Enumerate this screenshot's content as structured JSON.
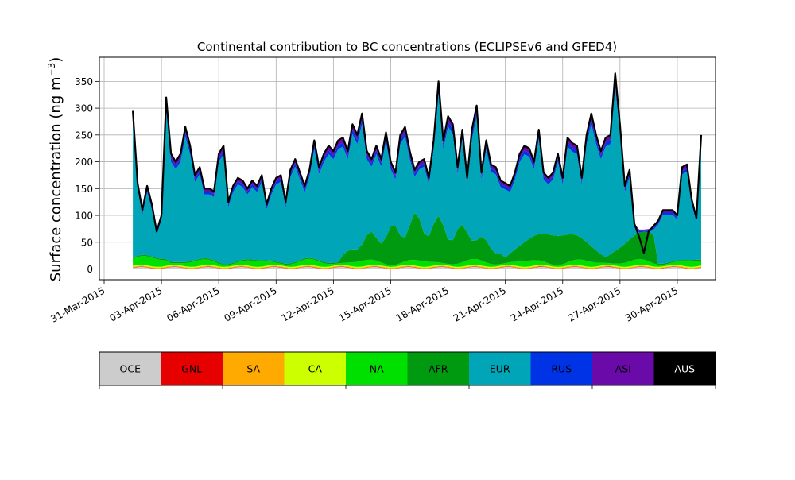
{
  "chart_data": {
    "type": "area",
    "stacked": true,
    "title": "Continental contribution to BC concentrations (ECLIPSEv6 and GFED4)",
    "ylabel_main": "Surface concentration (ng m",
    "ylabel_sup": "−3",
    "ylabel_close": ")",
    "xlabel": "",
    "ylim": [
      -20,
      395
    ],
    "yticks": [
      0,
      50,
      100,
      150,
      200,
      250,
      300,
      350
    ],
    "xlim": [
      "2015-03-30T18:00",
      "2015-05-02T00:00"
    ],
    "xticks": [
      "31-Mar-2015",
      "03-Apr-2015",
      "06-Apr-2015",
      "09-Apr-2015",
      "12-Apr-2015",
      "15-Apr-2015",
      "18-Apr-2015",
      "21-Apr-2015",
      "24-Apr-2015",
      "27-Apr-2015",
      "30-Apr-2015"
    ],
    "grid": true,
    "legend_placement": "colorbar-below",
    "series_order": [
      "OCE",
      "GNL",
      "SA",
      "CA",
      "NA",
      "AFR",
      "EUR",
      "RUS",
      "ASI",
      "AUS"
    ],
    "series_colors": {
      "OCE": "#cccccc",
      "GNL": "#e60000",
      "SA": "#ffaa00",
      "CA": "#ccff00",
      "NA": "#00e000",
      "AFR": "#009a10",
      "EUR": "#00a5b8",
      "RUS": "#0033e6",
      "ASI": "#6a0aa8",
      "AUS": "#000000"
    },
    "total_series": {
      "x": [
        "2015-04-01T12:00",
        "2015-04-01T18:00",
        "2015-04-02T00:00",
        "2015-04-02T06:00",
        "2015-04-02T12:00",
        "2015-04-02T18:00",
        "2015-04-03T00:00",
        "2015-04-03T06:00",
        "2015-04-03T12:00",
        "2015-04-03T18:00",
        "2015-04-04T00:00",
        "2015-04-04T06:00",
        "2015-04-04T12:00",
        "2015-04-04T18:00",
        "2015-04-05T00:00",
        "2015-04-05T06:00",
        "2015-04-05T12:00",
        "2015-04-05T18:00",
        "2015-04-06T00:00",
        "2015-04-06T06:00",
        "2015-04-06T12:00",
        "2015-04-06T18:00",
        "2015-04-07T00:00",
        "2015-04-07T06:00",
        "2015-04-07T12:00",
        "2015-04-07T18:00",
        "2015-04-08T00:00",
        "2015-04-08T06:00",
        "2015-04-08T12:00",
        "2015-04-08T18:00",
        "2015-04-09T00:00",
        "2015-04-09T06:00",
        "2015-04-09T12:00",
        "2015-04-09T18:00",
        "2015-04-10T00:00",
        "2015-04-10T06:00",
        "2015-04-10T12:00",
        "2015-04-10T18:00",
        "2015-04-11T00:00",
        "2015-04-11T06:00",
        "2015-04-11T12:00",
        "2015-04-11T18:00",
        "2015-04-12T00:00",
        "2015-04-12T06:00",
        "2015-04-12T12:00",
        "2015-04-12T18:00",
        "2015-04-13T00:00",
        "2015-04-13T06:00",
        "2015-04-13T12:00",
        "2015-04-13T18:00",
        "2015-04-14T00:00",
        "2015-04-14T06:00",
        "2015-04-14T12:00",
        "2015-04-14T18:00",
        "2015-04-15T00:00",
        "2015-04-15T06:00",
        "2015-04-15T12:00",
        "2015-04-15T18:00",
        "2015-04-16T00:00",
        "2015-04-16T06:00",
        "2015-04-16T12:00",
        "2015-04-16T18:00",
        "2015-04-17T00:00",
        "2015-04-17T06:00",
        "2015-04-17T12:00",
        "2015-04-17T18:00",
        "2015-04-18T00:00",
        "2015-04-18T06:00",
        "2015-04-18T12:00",
        "2015-04-18T18:00",
        "2015-04-19T00:00",
        "2015-04-19T06:00",
        "2015-04-19T12:00",
        "2015-04-19T18:00",
        "2015-04-20T00:00",
        "2015-04-20T06:00",
        "2015-04-20T12:00",
        "2015-04-20T18:00",
        "2015-04-21T00:00",
        "2015-04-21T06:00",
        "2015-04-21T12:00",
        "2015-04-21T18:00",
        "2015-04-22T00:00",
        "2015-04-22T06:00",
        "2015-04-22T12:00",
        "2015-04-22T18:00",
        "2015-04-23T00:00",
        "2015-04-23T06:00",
        "2015-04-23T12:00",
        "2015-04-23T18:00",
        "2015-04-24T00:00",
        "2015-04-24T06:00",
        "2015-04-24T12:00",
        "2015-04-24T18:00",
        "2015-04-25T00:00",
        "2015-04-25T06:00",
        "2015-04-25T12:00",
        "2015-04-25T18:00",
        "2015-04-26T00:00",
        "2015-04-26T06:00",
        "2015-04-26T12:00",
        "2015-04-26T18:00",
        "2015-04-27T00:00",
        "2015-04-27T06:00",
        "2015-04-27T12:00",
        "2015-04-27T18:00",
        "2015-04-28T00:00",
        "2015-04-28T06:00",
        "2015-04-28T12:00",
        "2015-04-28T18:00",
        "2015-04-29T00:00",
        "2015-04-29T06:00",
        "2015-04-29T12:00",
        "2015-04-29T18:00",
        "2015-04-30T00:00",
        "2015-04-30T06:00",
        "2015-04-30T12:00",
        "2015-04-30T18:00",
        "2015-05-01T00:00",
        "2015-05-01T06:00"
      ],
      "y": [
        295,
        160,
        110,
        155,
        120,
        70,
        100,
        320,
        215,
        200,
        215,
        265,
        230,
        175,
        190,
        150,
        150,
        145,
        215,
        230,
        125,
        155,
        170,
        165,
        150,
        165,
        155,
        175,
        120,
        150,
        170,
        175,
        125,
        185,
        205,
        180,
        155,
        185,
        240,
        190,
        215,
        230,
        220,
        240,
        245,
        220,
        270,
        250,
        290,
        220,
        205,
        230,
        205,
        255,
        200,
        180,
        250,
        265,
        220,
        185,
        200,
        205,
        170,
        240,
        350,
        240,
        285,
        270,
        190,
        260,
        170,
        260,
        305,
        180,
        240,
        195,
        190,
        165,
        160,
        155,
        180,
        215,
        230,
        225,
        200,
        260,
        180,
        170,
        180,
        215,
        170,
        245,
        235,
        230,
        170,
        250,
        290,
        250,
        220,
        245,
        250,
        365,
        270,
        155,
        185,
        85,
        60,
        30,
        70,
        80,
        90,
        110,
        110,
        110,
        100,
        190,
        195,
        130,
        95,
        250
      ]
    },
    "colorbar_labels": [
      "OCE",
      "GNL",
      "SA",
      "CA",
      "NA",
      "AFR",
      "EUR",
      "RUS",
      "ASI",
      "AUS"
    ]
  }
}
